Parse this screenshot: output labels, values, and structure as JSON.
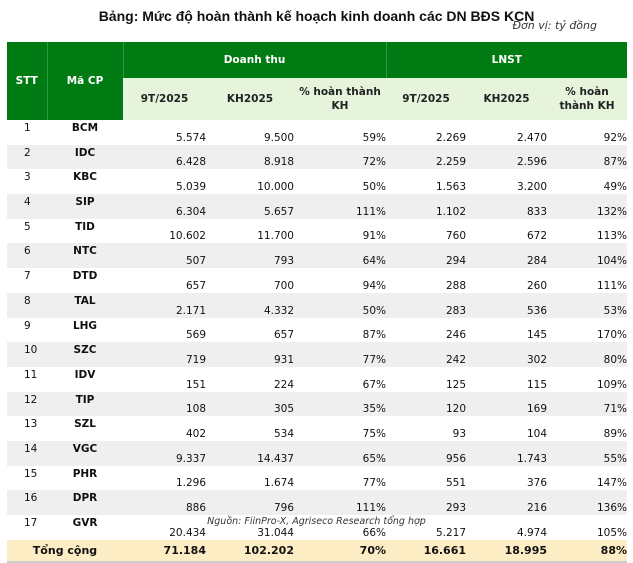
{
  "title": "Bảng: Mức độ hoàn thành kế hoạch kinh doanh các DN BĐS KCN",
  "unit": "Đơn vị: tỷ đồng",
  "headers": {
    "stt": "STT",
    "code": "Mã CP",
    "revenue": "Doanh thu",
    "profit": "LNST",
    "actual": "9T/2025",
    "plan": "KH2025",
    "pct": "% hoàn thành KH"
  },
  "rows": [
    [
      "1",
      "BCM",
      "5.574",
      "9.500",
      "59%",
      "2.269",
      "2.470",
      "92%"
    ],
    [
      "2",
      "IDC",
      "6.428",
      "8.918",
      "72%",
      "2.259",
      "2.596",
      "87%"
    ],
    [
      "3",
      "KBC",
      "5.039",
      "10.000",
      "50%",
      "1.563",
      "3.200",
      "49%"
    ],
    [
      "4",
      "SIP",
      "6.304",
      "5.657",
      "111%",
      "1.102",
      "833",
      "132%"
    ],
    [
      "5",
      "TID",
      "10.602",
      "11.700",
      "91%",
      "760",
      "672",
      "113%"
    ],
    [
      "6",
      "NTC",
      "507",
      "793",
      "64%",
      "294",
      "284",
      "104%"
    ],
    [
      "7",
      "DTD",
      "657",
      "700",
      "94%",
      "288",
      "260",
      "111%"
    ],
    [
      "8",
      "TAL",
      "2.171",
      "4.332",
      "50%",
      "283",
      "536",
      "53%"
    ],
    [
      "9",
      "LHG",
      "569",
      "657",
      "87%",
      "246",
      "145",
      "170%"
    ],
    [
      "10",
      "SZC",
      "719",
      "931",
      "77%",
      "242",
      "302",
      "80%"
    ],
    [
      "11",
      "IDV",
      "151",
      "224",
      "67%",
      "125",
      "115",
      "109%"
    ],
    [
      "12",
      "TIP",
      "108",
      "305",
      "35%",
      "120",
      "169",
      "71%"
    ],
    [
      "13",
      "SZL",
      "402",
      "534",
      "75%",
      "93",
      "104",
      "89%"
    ],
    [
      "14",
      "VGC",
      "9.337",
      "14.437",
      "65%",
      "956",
      "1.743",
      "55%"
    ],
    [
      "15",
      "PHR",
      "1.296",
      "1.674",
      "77%",
      "551",
      "376",
      "147%"
    ],
    [
      "16",
      "DPR",
      "886",
      "796",
      "111%",
      "293",
      "216",
      "136%"
    ],
    [
      "17",
      "GVR",
      "20.434",
      "31.044",
      "66%",
      "5.217",
      "4.974",
      "105%"
    ]
  ],
  "total": [
    "Tổng cộng",
    "71.184",
    "102.202",
    "70%",
    "16.661",
    "18.995",
    "88%"
  ],
  "source": "Nguồn: FiinPro-X, Agriseco Research tổng hợp"
}
